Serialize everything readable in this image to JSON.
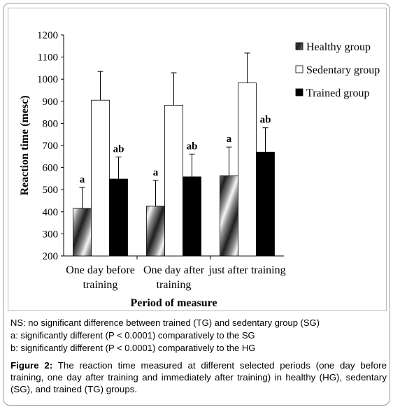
{
  "chart_data": {
    "type": "bar",
    "categories": [
      "One day before training",
      "One day after training",
      "just after training"
    ],
    "category_lines": [
      [
        "One day before",
        "training"
      ],
      [
        "One day after",
        "training"
      ],
      [
        "just after training"
      ]
    ],
    "series": [
      {
        "name": "Healthy group",
        "values": [
          415,
          425,
          563
        ],
        "errors": [
          95,
          117,
          130
        ],
        "labels": [
          "a",
          "a",
          "a"
        ],
        "fill": "hatched"
      },
      {
        "name": "Sedentary group",
        "values": [
          905,
          882,
          983
        ],
        "errors": [
          130,
          147,
          135
        ],
        "labels": [
          "",
          "",
          ""
        ],
        "fill": "#ffffff"
      },
      {
        "name": "Trained group",
        "values": [
          548,
          558,
          670
        ],
        "errors": [
          100,
          103,
          110
        ],
        "labels": [
          "ab",
          "ab",
          "ab"
        ],
        "fill": "#000000"
      }
    ],
    "xlabel": "Period of measure",
    "ylabel": "Reaction time (mesc)",
    "ylim": [
      200,
      1200
    ],
    "yticks": [
      200,
      300,
      400,
      500,
      600,
      700,
      800,
      900,
      1000,
      1100,
      1200
    ],
    "legend_position": "right",
    "grid": false
  },
  "notes": [
    "NS: no significant difference between trained (TG) and sedentary group (SG)",
    "a: significantly different (P < 0.0001) comparatively to the SG",
    "b: significantly different (P < 0.0001) comparatively to the HG"
  ],
  "caption": {
    "label": "Figure 2:",
    "text": " The reaction time measured at different selected periods (one day before training, one day after training and immediately after training) in healthy (HG), sedentary (SG), and trained (TG) groups."
  }
}
